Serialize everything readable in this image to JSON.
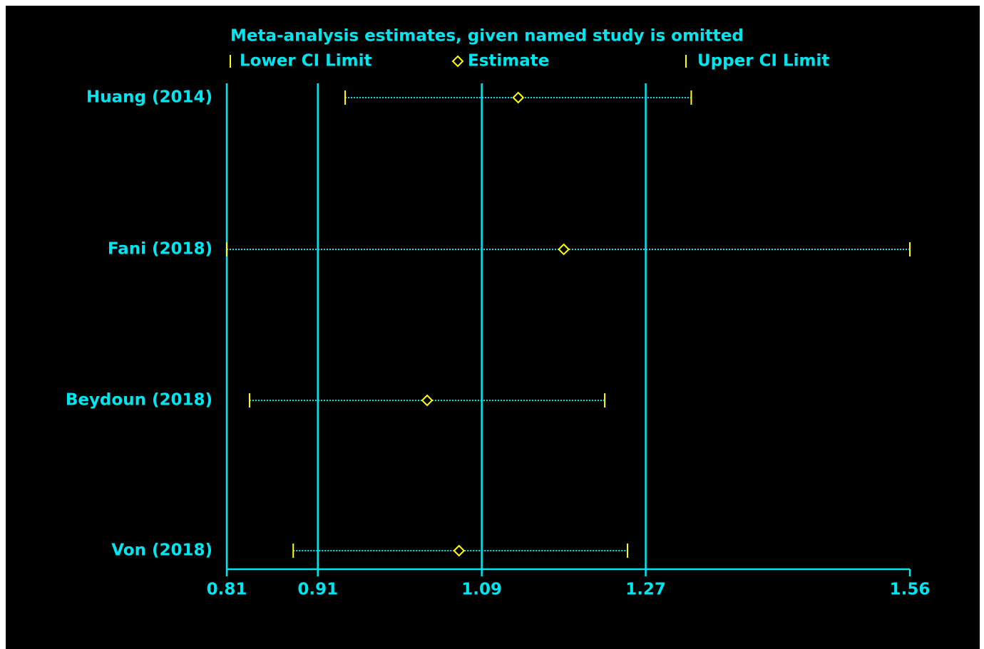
{
  "colors": {
    "background": "#000000",
    "axis": "#00e5ee",
    "marker": "#ffff00",
    "text": "#00e5ee"
  },
  "chart_data": {
    "type": "forest",
    "title": "Meta-analysis estimates, given named study is omitted",
    "legend": {
      "position": "top",
      "lower_label": "Lower CI Limit",
      "estimate_label": "Estimate",
      "upper_label": "Upper CI Limit"
    },
    "xlim": [
      0.81,
      1.56
    ],
    "xticks": [
      0.81,
      0.91,
      1.09,
      1.27,
      1.56
    ],
    "tick_labels": [
      "0.81",
      "0.91",
      "1.09",
      "1.27",
      "1.56"
    ],
    "reference_lines": [
      0.81,
      0.91,
      1.09,
      1.27
    ],
    "grid": false,
    "studies": [
      {
        "label": "Huang (2014)",
        "lower": 0.94,
        "estimate": 1.13,
        "upper": 1.32
      },
      {
        "label": "Fani (2018)",
        "lower": 0.81,
        "estimate": 1.18,
        "upper": 1.56
      },
      {
        "label": "Beydoun (2018)",
        "lower": 0.835,
        "estimate": 1.03,
        "upper": 1.225
      },
      {
        "label": "Von (2018)",
        "lower": 0.883,
        "estimate": 1.065,
        "upper": 1.25
      }
    ]
  }
}
